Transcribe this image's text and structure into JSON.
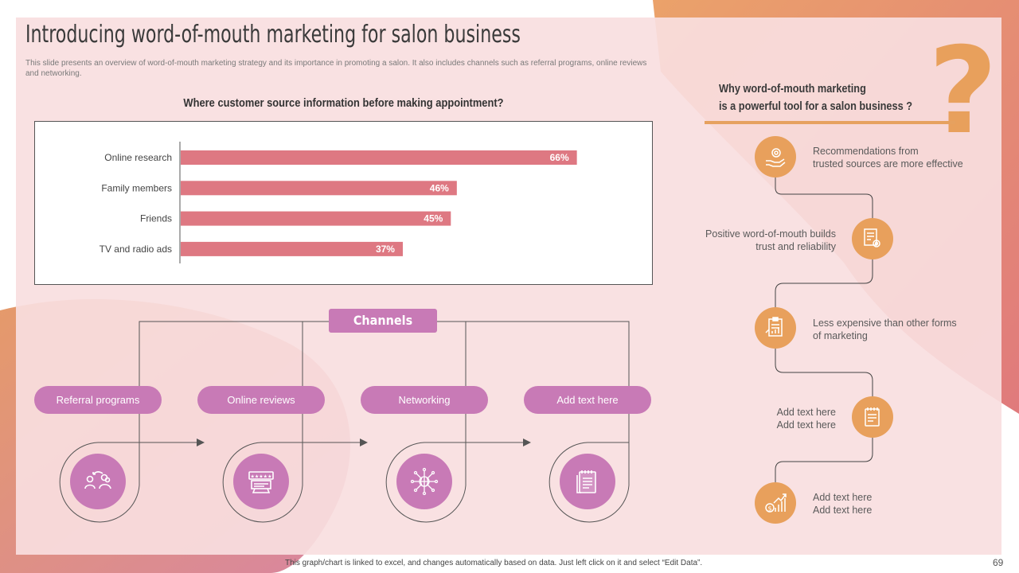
{
  "header": {
    "title": "Introducing word-of-mouth marketing for salon business",
    "subtitle": "This slide presents an overview of word-of-mouth marketing strategy and its importance in promoting a salon. It also includes channels such as referral programs, online reviews and networking."
  },
  "chart_data": {
    "type": "bar",
    "orientation": "horizontal",
    "title": "Where customer source information before making appointment?",
    "categories": [
      "Online research",
      "Family members",
      "Friends",
      "TV and radio ads"
    ],
    "values": [
      66,
      46,
      45,
      37
    ],
    "value_labels": [
      "66%",
      "46%",
      "45%",
      "37%"
    ],
    "xlim": [
      0,
      100
    ],
    "bar_color": "#de7882",
    "grid": false,
    "legend": "none"
  },
  "channels": {
    "label": "Channels",
    "items": [
      {
        "label": "Referral programs",
        "icon": "people-exchange-icon"
      },
      {
        "label": "Online reviews",
        "icon": "review-stars-icon"
      },
      {
        "label": "Networking",
        "icon": "network-globe-icon"
      },
      {
        "label": "Add text here",
        "icon": "notepad-icon"
      }
    ]
  },
  "why": {
    "line1": "Why word-of-mouth  marketing",
    "line2": "is a powerful  tool  for  a salon business ?",
    "qmark": "?",
    "points": [
      {
        "text1": "Recommendations from",
        "text2": "trusted sources are more effective",
        "icon": "hand-gear-icon"
      },
      {
        "text1": "Positive word-of-mouth  builds",
        "text2": "trust and reliability",
        "icon": "document-gear-icon"
      },
      {
        "text1": "Less expensive than other forms",
        "text2": "of marketing",
        "icon": "clipboard-chart-icon"
      },
      {
        "text1": "Add text here",
        "text2": "Add text here",
        "icon": "notes-icon"
      },
      {
        "text1": "Add text here",
        "text2": "Add text here",
        "icon": "money-growth-icon"
      }
    ]
  },
  "colors": {
    "accent_orange": "#e8a05c",
    "accent_purple": "#c87ab6",
    "bar_pink": "#de7882",
    "panel_pink": "#f8dee0"
  },
  "footer": {
    "note": "This graph/chart is linked to excel, and changes automatically based on data. Just left click on it and select “Edit Data”.",
    "page": "69"
  }
}
